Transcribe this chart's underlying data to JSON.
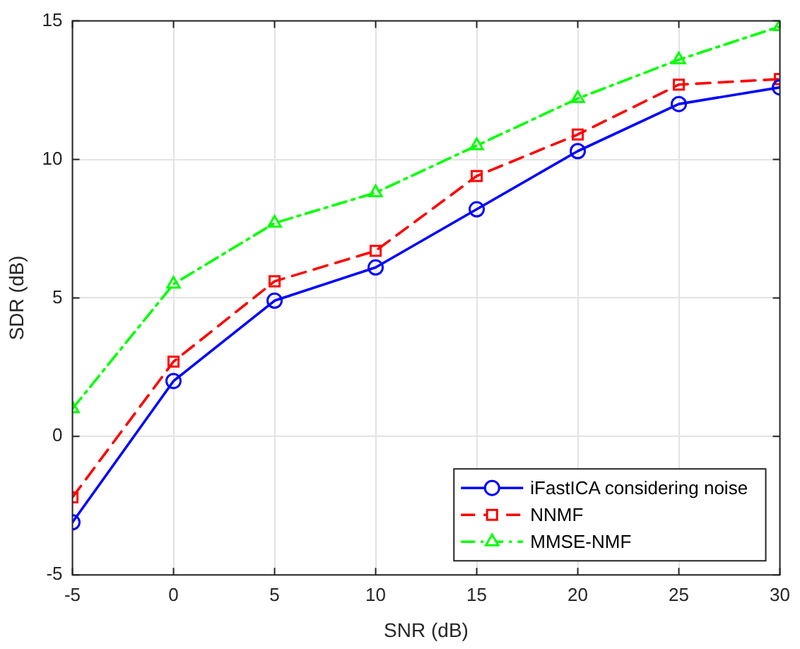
{
  "chart_data": {
    "type": "line",
    "xlabel": "SNR (dB)",
    "ylabel": "SDR (dB)",
    "x": [
      -5,
      0,
      5,
      10,
      15,
      20,
      25,
      30
    ],
    "xlim": [
      -5,
      30
    ],
    "xticks": [
      -5,
      0,
      5,
      10,
      15,
      20,
      25,
      30
    ],
    "ylim": [
      -5,
      15
    ],
    "yticks": [
      -5,
      0,
      5,
      10,
      15
    ],
    "grid": true,
    "legend": "bottom right",
    "series": [
      {
        "name": "iFastICA considering noise",
        "color": "#0000ff",
        "marker": "circle",
        "line_style": "solid",
        "values": [
          -3.1,
          2.0,
          4.9,
          6.1,
          8.2,
          10.3,
          12.0,
          12.6
        ]
      },
      {
        "name": "NNMF",
        "color": "#ff0000",
        "marker": "square",
        "line_style": "dashed",
        "values": [
          -2.2,
          2.7,
          5.6,
          6.7,
          9.4,
          10.9,
          12.7,
          12.9
        ]
      },
      {
        "name": "MMSE-NMF",
        "color": "#00ff00",
        "marker": "triangle",
        "line_style": "dashdot",
        "values": [
          1.0,
          5.5,
          7.7,
          8.8,
          10.5,
          12.2,
          13.6,
          14.8
        ]
      }
    ]
  }
}
